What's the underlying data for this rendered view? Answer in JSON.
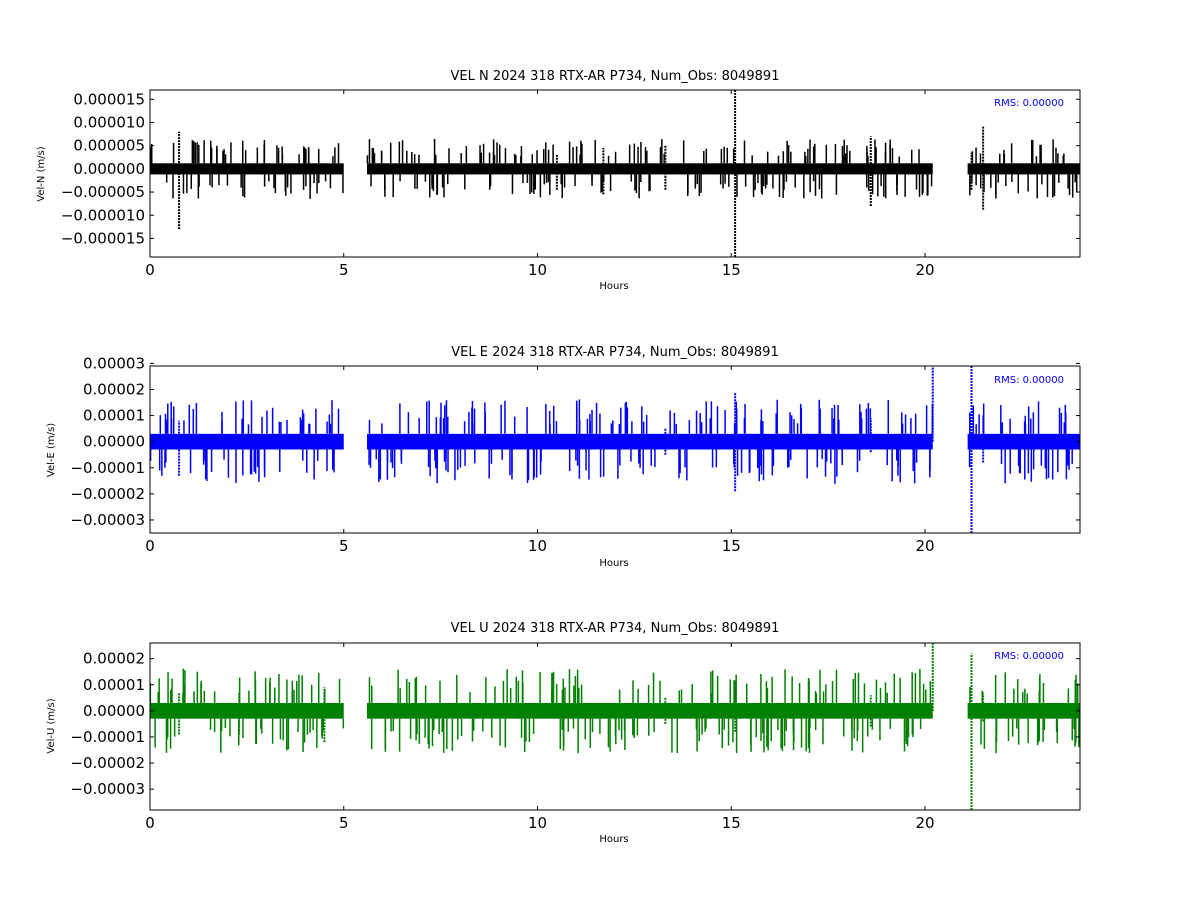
{
  "chart_data": [
    {
      "type": "scatter",
      "title": "VEL N 2024 318 RTX-AR  P734, Num_Obs: 8049891",
      "xlabel": "Hours",
      "ylabel": "Vel-N (m/s)",
      "xlim": [
        0,
        24
      ],
      "ylim": [
        -1.9e-05,
        1.7e-05
      ],
      "xticks": [
        0,
        5,
        10,
        15,
        20
      ],
      "xtick_labels": [
        "0",
        "5",
        "10",
        "15",
        "20"
      ],
      "yticks": [
        1.5e-05,
        1e-05,
        5e-06,
        0,
        -5e-06,
        -1e-05,
        -1.5e-05
      ],
      "ytick_labels": [
        "0.000015",
        "0.000010",
        "0.000005",
        "0.000000",
        "−0.000005",
        "−0.000010",
        "−0.000015"
      ],
      "rms_label": "RMS:  0.00000",
      "color": "#000000",
      "rms_color": "#0000ff",
      "grid": false,
      "series": [
        {
          "segments": [
            [
              0.0,
              5.0
            ],
            [
              5.6,
              20.2
            ],
            [
              21.1,
              24.0
            ]
          ],
          "band": [
            -1.2e-06,
            1.2e-06
          ],
          "spikes": [
            {
              "x": 0.75,
              "y": [
                -1.3e-05,
                8e-06
              ]
            },
            {
              "x": 15.1,
              "y": [
                -1.9e-05,
                1.7e-05
              ]
            },
            {
              "x": 18.6,
              "y": [
                -8e-06,
                7e-06
              ]
            },
            {
              "x": 21.5,
              "y": [
                -8.8e-06,
                9.2e-06
              ]
            },
            {
              "x": 21.2,
              "y": [
                -4.5e-06,
                3.5e-06
              ]
            },
            {
              "x": 10.5,
              "y": [
                -4.5e-06,
                3e-06
              ]
            },
            {
              "x": 11.7,
              "y": [
                -5.5e-06,
                4.5e-06
              ]
            },
            {
              "x": 13.3,
              "y": [
                -4.5e-06,
                5e-06
              ]
            }
          ]
        }
      ]
    },
    {
      "type": "scatter",
      "title": "VEL E 2024 318 RTX-AR  P734, Num_Obs: 8049891",
      "xlabel": "Hours",
      "ylabel": "Vel-E (m/s)",
      "xlim": [
        0,
        24
      ],
      "ylim": [
        -3.5e-05,
        2.9e-05
      ],
      "xticks": [
        0,
        5,
        10,
        15,
        20
      ],
      "xtick_labels": [
        "0",
        "5",
        "10",
        "15",
        "20"
      ],
      "yticks": [
        3e-05,
        2e-05,
        1e-05,
        0,
        -1e-05,
        -2e-05,
        -3e-05
      ],
      "ytick_labels": [
        "0.00003",
        "0.00002",
        "0.00001",
        "0.00000",
        "−0.00001",
        "−0.00002",
        "−0.00003"
      ],
      "rms_label": "RMS:  0.00000",
      "color": "#0000ff",
      "rms_color": "#0000ff",
      "grid": false,
      "series": [
        {
          "segments": [
            [
              0.0,
              5.0
            ],
            [
              5.6,
              20.2
            ],
            [
              21.1,
              24.0
            ]
          ],
          "band": [
            -3e-06,
            3e-06
          ],
          "spikes": [
            {
              "x": 0.75,
              "y": [
                -1.3e-05,
                8e-06
              ]
            },
            {
              "x": 15.1,
              "y": [
                -1.9e-05,
                1.9e-05
              ]
            },
            {
              "x": 18.6,
              "y": [
                -4e-06,
                9e-06
              ]
            },
            {
              "x": 20.2,
              "y": [
                0,
                2.9e-05
              ]
            },
            {
              "x": 21.2,
              "y": [
                -3.5e-05,
                2.9e-05
              ]
            },
            {
              "x": 21.5,
              "y": [
                -8e-06,
                1e-05
              ]
            },
            {
              "x": 13.3,
              "y": [
                -5e-06,
                5e-06
              ]
            }
          ]
        }
      ]
    },
    {
      "type": "scatter",
      "title": "VEL U 2024 318 RTX-AR  P734, Num_Obs: 8049891",
      "xlabel": "Hours",
      "ylabel": "Vel-U (m/s)",
      "xlim": [
        0,
        24
      ],
      "ylim": [
        -3.8e-05,
        2.6e-05
      ],
      "xticks": [
        0,
        5,
        10,
        15,
        20
      ],
      "xtick_labels": [
        "0",
        "5",
        "10",
        "15",
        "20"
      ],
      "yticks": [
        2e-05,
        1e-05,
        0,
        -1e-05,
        -2e-05,
        -3e-05
      ],
      "ytick_labels": [
        "0.00002",
        "0.00001",
        "0.00000",
        "−0.00001",
        "−0.00002",
        "−0.00003"
      ],
      "rms_label": "RMS:  0.00000",
      "color": "#008000",
      "rms_color": "#0000ff",
      "grid": false,
      "series": [
        {
          "segments": [
            [
              0.0,
              5.0
            ],
            [
              5.6,
              20.2
            ],
            [
              21.1,
              24.0
            ]
          ],
          "band": [
            -3e-06,
            3e-06
          ],
          "spikes": [
            {
              "x": 0.75,
              "y": [
                -9e-06,
                7e-06
              ]
            },
            {
              "x": 2.3,
              "y": [
                -9e-06,
                7e-06
              ]
            },
            {
              "x": 4.5,
              "y": [
                -1.2e-05,
                9e-06
              ]
            },
            {
              "x": 13.3,
              "y": [
                -5e-06,
                5e-06
              ]
            },
            {
              "x": 15.1,
              "y": [
                -8e-06,
                7e-06
              ]
            },
            {
              "x": 18.6,
              "y": [
                -6e-06,
                6e-06
              ]
            },
            {
              "x": 20.2,
              "y": [
                0,
                2.6e-05
              ]
            },
            {
              "x": 21.2,
              "y": [
                -3.8e-05,
                2.2e-05
              ]
            },
            {
              "x": 21.5,
              "y": [
                -4e-06,
                7e-06
              ]
            }
          ]
        }
      ]
    }
  ]
}
